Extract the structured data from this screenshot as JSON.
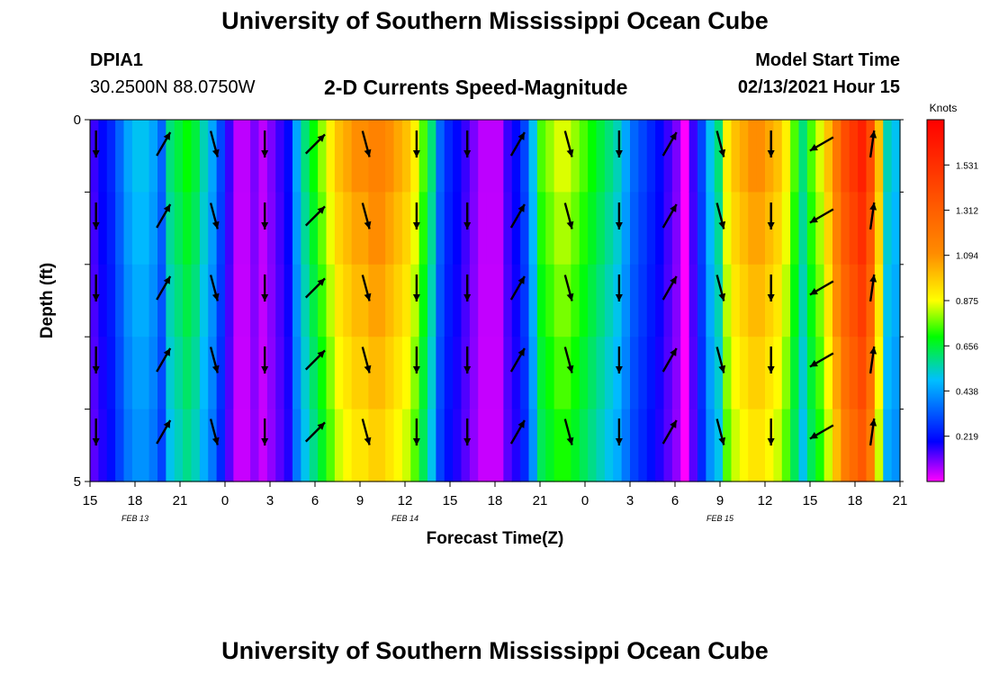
{
  "header": {
    "title": "University of Southern Mississippi Ocean Cube",
    "station_id": "DPIA1",
    "station_coords": "30.2500N 88.0750W",
    "chart_title": "2-D Currents Speed-Magnitude",
    "start_label": "Model Start Time",
    "start_value": "02/13/2021 Hour 15"
  },
  "footer": {
    "title": "University of Southern Mississippi Ocean Cube"
  },
  "chart_data": {
    "type": "heatmap",
    "xlabel": "Forecast Time(Z)",
    "ylabel": "Depth (ft)",
    "x_tick_labels": [
      "15",
      "18",
      "21",
      "0",
      "3",
      "6",
      "9",
      "12",
      "15",
      "18",
      "21",
      "0",
      "3",
      "6",
      "9",
      "12",
      "15",
      "18",
      "21"
    ],
    "x_date_labels": [
      {
        "label": "FEB 13",
        "tick_index": 1
      },
      {
        "label": "FEB 14",
        "tick_index": 7
      },
      {
        "label": "FEB 15",
        "tick_index": 14
      }
    ],
    "y_tick_labels": [
      "0",
      "5"
    ],
    "ylim": [
      0,
      5
    ],
    "depth_bins": 5,
    "colorbar": {
      "unit": "Knots",
      "min": 0.0,
      "max": 1.75,
      "tick_labels": [
        "1.531",
        "1.312",
        "1.094",
        "0.875",
        "0.656",
        "0.438",
        "0.219"
      ],
      "tick_values": [
        1.531,
        1.312,
        1.094,
        0.875,
        0.656,
        0.438,
        0.219
      ]
    },
    "speed_by_hour_knots": [
      0.15,
      0.2,
      0.25,
      0.35,
      0.45,
      0.5,
      0.5,
      0.45,
      0.35,
      0.6,
      0.65,
      0.7,
      0.65,
      0.55,
      0.45,
      0.3,
      0.15,
      0.05,
      0.05,
      0.1,
      0.05,
      0.1,
      0.15,
      0.2,
      0.45,
      0.6,
      0.7,
      0.8,
      0.9,
      1.0,
      1.05,
      1.1,
      1.1,
      1.15,
      1.15,
      1.1,
      1.05,
      1.0,
      0.9,
      0.75,
      0.6,
      0.35,
      0.25,
      0.2,
      0.15,
      0.1,
      0.05,
      0.05,
      0.05,
      0.15,
      0.2,
      0.3,
      0.5,
      0.75,
      0.8,
      0.85,
      0.85,
      0.8,
      0.75,
      0.7,
      0.65,
      0.6,
      0.55,
      0.45,
      0.35,
      0.3,
      0.25,
      0.2,
      0.15,
      0.1,
      0.0,
      0.15,
      0.3,
      0.5,
      0.6,
      0.9,
      1.0,
      1.05,
      1.1,
      1.1,
      1.05,
      1.0,
      0.9,
      0.75,
      0.6,
      0.75,
      0.85,
      1.0,
      1.2,
      1.4,
      1.5,
      1.6,
      1.4,
      1.0,
      0.55,
      0.5
    ],
    "vectors": {
      "hour_indices": [
        0,
        8,
        14,
        20,
        26,
        32,
        38,
        44,
        50,
        56,
        62,
        68,
        74,
        80,
        86,
        92
      ],
      "direction": [
        "south",
        "north-northeast",
        "south-southeast",
        "south",
        "northeast",
        "south-southeast",
        "south",
        "south",
        "north-northeast",
        "south-southeast",
        "south",
        "north-northeast",
        "south-southeast",
        "south",
        "west-southwest",
        "north"
      ]
    }
  }
}
